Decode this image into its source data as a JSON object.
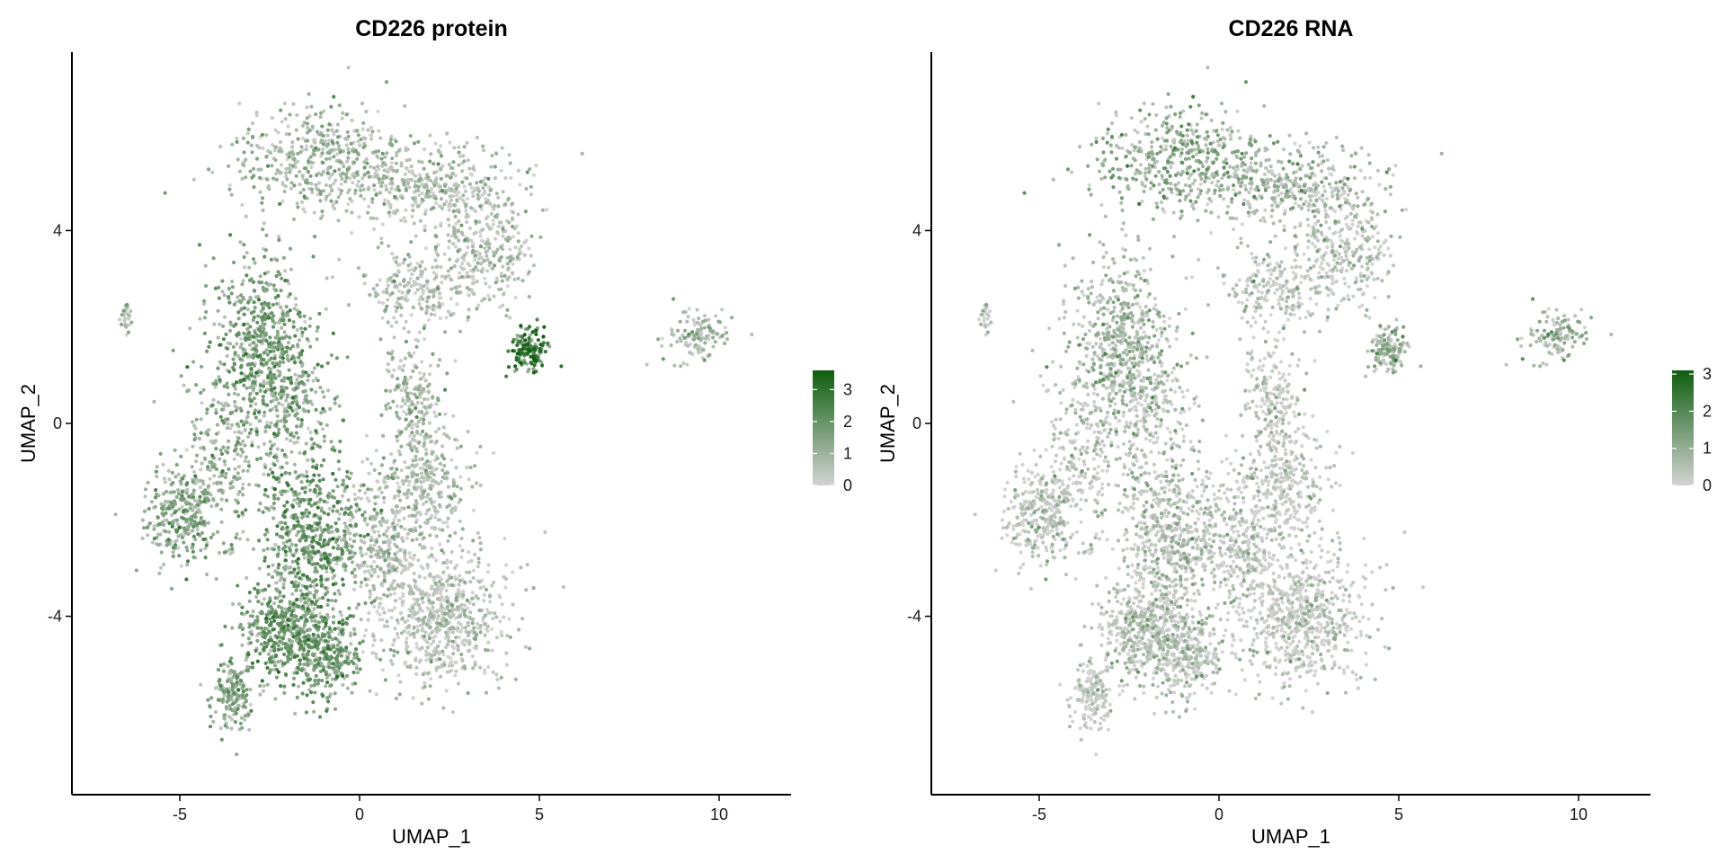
{
  "colors": {
    "low": "#d3d3d3",
    "high": "#0f5e0f"
  },
  "chart_data": [
    {
      "type": "scatter",
      "title": "CD226 protein",
      "xlabel": "UMAP_1",
      "ylabel": "UMAP_2",
      "xlim": [
        -8,
        12
      ],
      "ylim": [
        -7.7,
        7.7
      ],
      "xticks": [
        -5,
        0,
        5,
        10
      ],
      "yticks": [
        -4,
        0,
        4
      ],
      "grid": false,
      "legend": "right",
      "color_scale": {
        "min": 0,
        "max": 3.6,
        "ticks": [
          0,
          1,
          2,
          3
        ]
      },
      "regions": [
        {
          "cx": -0.8,
          "cy": 5.4,
          "sx": 1.8,
          "sy": 0.7,
          "n": 520,
          "level": 0.9
        },
        {
          "cx": 2.3,
          "cy": 4.9,
          "sx": 1.6,
          "sy": 0.6,
          "n": 330,
          "level": 0.6
        },
        {
          "cx": 3.4,
          "cy": 3.5,
          "sx": 1.0,
          "sy": 0.8,
          "n": 260,
          "level": 0.6
        },
        {
          "cx": 1.6,
          "cy": 2.8,
          "sx": 1.0,
          "sy": 0.6,
          "n": 200,
          "level": 0.6
        },
        {
          "cx": -2.8,
          "cy": 1.8,
          "sx": 0.9,
          "sy": 1.2,
          "n": 520,
          "level": 1.7
        },
        {
          "cx": -1.8,
          "cy": 0.5,
          "sx": 0.7,
          "sy": 0.9,
          "n": 250,
          "level": 1.5
        },
        {
          "cx": -3.8,
          "cy": -0.8,
          "sx": 0.8,
          "sy": 1.1,
          "n": 260,
          "level": 1.2
        },
        {
          "cx": -5.0,
          "cy": -1.9,
          "sx": 0.7,
          "sy": 0.7,
          "n": 280,
          "level": 1.4
        },
        {
          "cx": -1.3,
          "cy": -2.3,
          "sx": 0.9,
          "sy": 1.1,
          "n": 560,
          "level": 1.9
        },
        {
          "cx": -2.1,
          "cy": -4.3,
          "sx": 0.8,
          "sy": 0.7,
          "n": 420,
          "level": 1.8
        },
        {
          "cx": -1.0,
          "cy": -4.8,
          "sx": 0.7,
          "sy": 0.6,
          "n": 300,
          "level": 1.8
        },
        {
          "cx": -3.6,
          "cy": -5.6,
          "sx": 0.4,
          "sy": 0.5,
          "n": 170,
          "level": 1.5
        },
        {
          "cx": 1.8,
          "cy": -1.2,
          "sx": 0.8,
          "sy": 0.9,
          "n": 360,
          "level": 0.6
        },
        {
          "cx": 1.4,
          "cy": 0.8,
          "sx": 0.6,
          "sy": 0.7,
          "n": 150,
          "level": 0.8
        },
        {
          "cx": 2.2,
          "cy": -4.0,
          "sx": 1.3,
          "sy": 1.0,
          "n": 720,
          "level": 0.4
        },
        {
          "cx": 0.5,
          "cy": -2.5,
          "sx": 0.7,
          "sy": 0.9,
          "n": 240,
          "level": 0.7
        },
        {
          "cx": 4.7,
          "cy": 1.5,
          "sx": 0.35,
          "sy": 0.28,
          "n": 150,
          "level": 2.9
        },
        {
          "cx": 9.4,
          "cy": 1.8,
          "sx": 0.6,
          "sy": 0.35,
          "n": 120,
          "level": 0.8
        },
        {
          "cx": -6.5,
          "cy": 2.2,
          "sx": 0.1,
          "sy": 0.2,
          "n": 25,
          "level": 0.8
        }
      ]
    },
    {
      "type": "scatter",
      "title": "CD226 RNA",
      "xlabel": "UMAP_1",
      "ylabel": "UMAP_2",
      "xlim": [
        -8,
        12
      ],
      "ylim": [
        -7.7,
        7.7
      ],
      "xticks": [
        -5,
        0,
        5,
        10
      ],
      "yticks": [
        -4,
        0,
        4
      ],
      "grid": false,
      "legend": "right",
      "color_scale": {
        "min": 0,
        "max": 3.1,
        "ticks": [
          0,
          1,
          2,
          3
        ]
      },
      "regions": [
        {
          "cx": -0.8,
          "cy": 5.4,
          "sx": 1.8,
          "sy": 0.7,
          "n": 520,
          "level": 1.0
        },
        {
          "cx": 2.3,
          "cy": 4.9,
          "sx": 1.6,
          "sy": 0.6,
          "n": 330,
          "level": 0.6
        },
        {
          "cx": 3.4,
          "cy": 3.5,
          "sx": 1.0,
          "sy": 0.8,
          "n": 260,
          "level": 0.3
        },
        {
          "cx": 1.6,
          "cy": 2.8,
          "sx": 1.0,
          "sy": 0.6,
          "n": 200,
          "level": 0.3
        },
        {
          "cx": -2.8,
          "cy": 1.8,
          "sx": 0.9,
          "sy": 1.2,
          "n": 520,
          "level": 0.7
        },
        {
          "cx": -1.8,
          "cy": 0.5,
          "sx": 0.7,
          "sy": 0.9,
          "n": 250,
          "level": 0.4
        },
        {
          "cx": -3.8,
          "cy": -0.8,
          "sx": 0.8,
          "sy": 1.1,
          "n": 260,
          "level": 0.2
        },
        {
          "cx": -5.0,
          "cy": -1.9,
          "sx": 0.7,
          "sy": 0.7,
          "n": 280,
          "level": 0.2
        },
        {
          "cx": -1.3,
          "cy": -2.3,
          "sx": 0.9,
          "sy": 1.1,
          "n": 560,
          "level": 0.4
        },
        {
          "cx": -2.1,
          "cy": -4.3,
          "sx": 0.8,
          "sy": 0.7,
          "n": 420,
          "level": 0.3
        },
        {
          "cx": -1.0,
          "cy": -4.8,
          "sx": 0.7,
          "sy": 0.6,
          "n": 300,
          "level": 0.3
        },
        {
          "cx": -3.6,
          "cy": -5.6,
          "sx": 0.4,
          "sy": 0.5,
          "n": 170,
          "level": 0.1
        },
        {
          "cx": 1.8,
          "cy": -1.2,
          "sx": 0.8,
          "sy": 0.9,
          "n": 360,
          "level": 0.1
        },
        {
          "cx": 1.4,
          "cy": 0.8,
          "sx": 0.6,
          "sy": 0.7,
          "n": 150,
          "level": 0.1
        },
        {
          "cx": 2.2,
          "cy": -4.0,
          "sx": 1.3,
          "sy": 1.0,
          "n": 720,
          "level": 0.1
        },
        {
          "cx": 0.5,
          "cy": -2.5,
          "sx": 0.7,
          "sy": 0.9,
          "n": 240,
          "level": 0.2
        },
        {
          "cx": 4.7,
          "cy": 1.5,
          "sx": 0.35,
          "sy": 0.28,
          "n": 150,
          "level": 0.8
        },
        {
          "cx": 9.4,
          "cy": 1.8,
          "sx": 0.6,
          "sy": 0.35,
          "n": 120,
          "level": 0.8
        },
        {
          "cx": -6.5,
          "cy": 2.2,
          "sx": 0.1,
          "sy": 0.2,
          "n": 25,
          "level": 0.3
        }
      ]
    }
  ]
}
